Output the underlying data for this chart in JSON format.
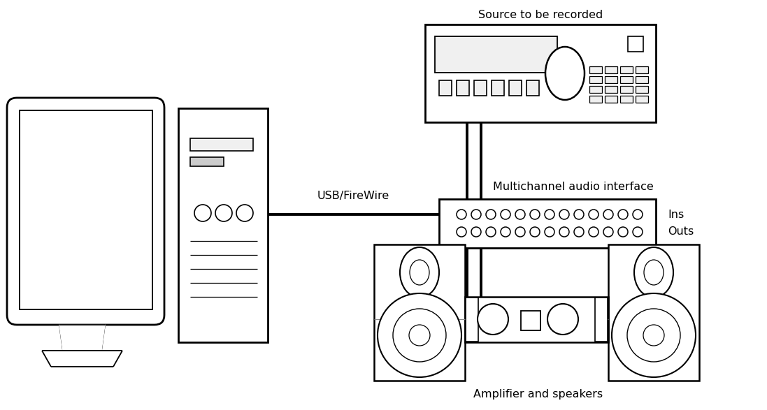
{
  "bg_color": "#ffffff",
  "lc": "#000000",
  "lw": 1.5,
  "tlw": 2.8,
  "labels": {
    "source": "Source to be recorded",
    "interface": "Multichannel audio interface",
    "usb": "USB/FireWire",
    "amplifier": "Amplifier and speakers",
    "ins": "Ins",
    "outs": "Outs"
  },
  "fs": 11.5
}
